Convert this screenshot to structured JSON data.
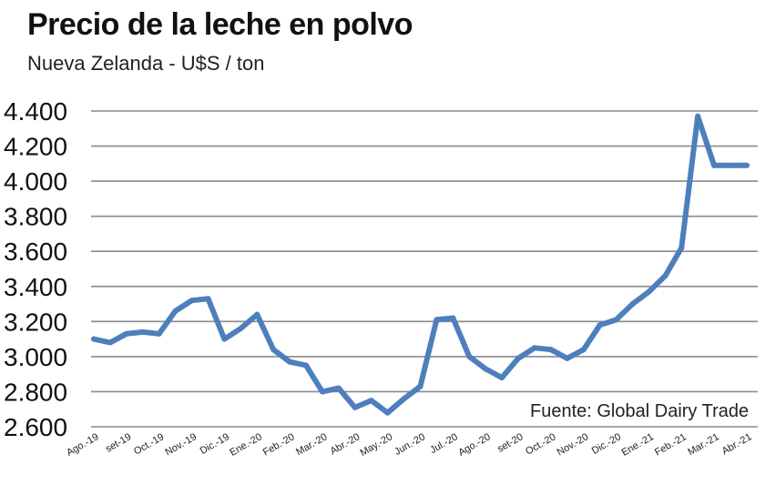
{
  "chart_data": {
    "type": "line",
    "title": "Precio de la leche en polvo",
    "subtitle": "Nueva Zelanda - U$S / ton",
    "source": "Fuente: Global Dairy Trade",
    "ylim": [
      2600,
      4400
    ],
    "yticks": [
      "4.400",
      "4.200",
      "4.000",
      "3.800",
      "3.600",
      "3.400",
      "3.200",
      "3.000",
      "2.800",
      "2.600"
    ],
    "ytick_values": [
      4400,
      4200,
      4000,
      3800,
      3600,
      3400,
      3200,
      3000,
      2800,
      2600
    ],
    "xticks": [
      "Ago.-19",
      "set-19",
      "Oct.-19",
      "Nov.-19",
      "Dic.-19",
      "Ene.-20",
      "Feb.-20",
      "Mar.-20",
      "Abr.-20",
      "May.-20",
      "Jun.-20",
      "Jul.-20",
      "Ago.-20",
      "set-20",
      "Oct.-20",
      "Nov.-20",
      "Dic.-20",
      "Ene.-21",
      "Feb.-21",
      "Mar.-21",
      "Abr.-21"
    ],
    "grid": true,
    "color": "#4e7fbd",
    "series": [
      {
        "x": [
          0,
          0.5,
          1,
          1.5,
          2,
          2.5,
          3,
          3.5,
          4,
          4.5,
          5,
          5.5,
          6,
          6.5,
          7,
          7.5,
          8,
          8.5,
          9,
          9.5,
          10,
          10.5,
          11,
          11.5,
          12,
          12.5,
          13,
          13.5,
          14,
          14.5,
          15,
          15.5,
          16,
          16.5,
          17,
          17.5,
          18,
          18.5,
          19,
          19.5,
          20
        ],
        "values": [
          3100,
          3080,
          3130,
          3140,
          3130,
          3260,
          3320,
          3330,
          3100,
          3160,
          3240,
          3040,
          2970,
          2950,
          2800,
          2820,
          2710,
          2750,
          2680,
          2760,
          2830,
          3210,
          3220,
          3000,
          2930,
          2880,
          2990,
          3050,
          3040,
          2990,
          3040,
          3180,
          3210,
          3300,
          3370,
          3460,
          3620,
          4370,
          4090,
          4090,
          4090
        ]
      }
    ]
  }
}
